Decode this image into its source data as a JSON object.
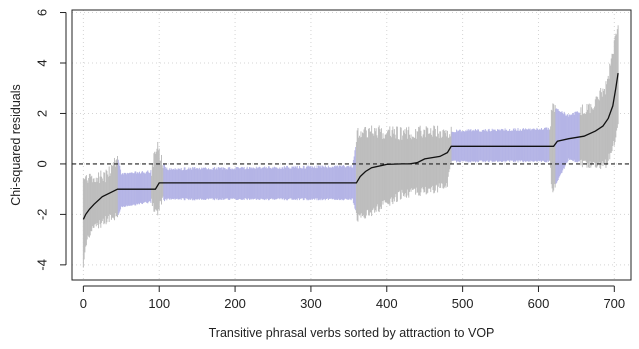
{
  "chart_data": {
    "type": "line",
    "xlabel": "Transitive phrasal verbs sorted by attraction to VOP",
    "ylabel": "Chi-squared residuals",
    "xlim": [
      -15,
      722
    ],
    "ylim": [
      -4.6,
      6.1
    ],
    "x_ticks": [
      0,
      100,
      200,
      300,
      400,
      500,
      600,
      700
    ],
    "y_ticks": [
      -4,
      -2,
      0,
      2,
      4,
      6
    ],
    "grid": true,
    "reference_line": {
      "y": 0,
      "style": "dashed"
    },
    "colors": {
      "band": "#b4b4e6",
      "band_gray": "#bdbdbd",
      "line": "#111111"
    },
    "gray_band_segments": [
      [
        0,
        45
      ],
      [
        90,
        105
      ],
      [
        360,
        485
      ],
      [
        615,
        622
      ],
      [
        655,
        705
      ]
    ],
    "band_envelope": [
      {
        "x": 0,
        "low": -4.3,
        "high": -0.3
      },
      {
        "x": 3,
        "low": -3.2,
        "high": -0.6
      },
      {
        "x": 10,
        "low": -2.6,
        "high": -0.6
      },
      {
        "x": 30,
        "low": -2.2,
        "high": -0.5
      },
      {
        "x": 45,
        "low": -2.1,
        "high": 0.3
      },
      {
        "x": 50,
        "low": -1.7,
        "high": -0.4
      },
      {
        "x": 90,
        "low": -1.5,
        "high": -0.3
      },
      {
        "x": 97,
        "low": -2.0,
        "high": 0.8
      },
      {
        "x": 103,
        "low": -1.5,
        "high": 0.2
      },
      {
        "x": 110,
        "low": -1.4,
        "high": -0.2
      },
      {
        "x": 355,
        "low": -1.4,
        "high": -0.1
      },
      {
        "x": 362,
        "low": -2.2,
        "high": 1.3
      },
      {
        "x": 420,
        "low": -1.2,
        "high": 1.2
      },
      {
        "x": 480,
        "low": -0.9,
        "high": 1.3
      },
      {
        "x": 485,
        "low": 0.1,
        "high": 1.3
      },
      {
        "x": 615,
        "low": 0.1,
        "high": 1.4
      },
      {
        "x": 618,
        "low": -1.1,
        "high": 2.3
      },
      {
        "x": 640,
        "low": 0.2,
        "high": 1.9
      },
      {
        "x": 670,
        "low": -0.1,
        "high": 2.3
      },
      {
        "x": 690,
        "low": 0.0,
        "high": 3.1
      },
      {
        "x": 700,
        "low": 0.8,
        "high": 4.8
      },
      {
        "x": 705,
        "low": 1.5,
        "high": 5.6
      }
    ],
    "series": [
      {
        "x": [
          0,
          3,
          8,
          14,
          25,
          35,
          45,
          95,
          100,
          360,
          365,
          372,
          380,
          400,
          420,
          430,
          440,
          450,
          470,
          480,
          485,
          620,
          625,
          640,
          660,
          675,
          685,
          692,
          698,
          702,
          705
        ],
        "y": [
          -2.2,
          -2.0,
          -1.8,
          -1.6,
          -1.3,
          -1.15,
          -1.0,
          -1.0,
          -0.75,
          -0.75,
          -0.5,
          -0.3,
          -0.15,
          -0.02,
          0.0,
          0.0,
          0.05,
          0.2,
          0.3,
          0.45,
          0.7,
          0.7,
          0.9,
          1.0,
          1.1,
          1.3,
          1.5,
          1.8,
          2.3,
          3.0,
          3.6
        ]
      }
    ]
  }
}
